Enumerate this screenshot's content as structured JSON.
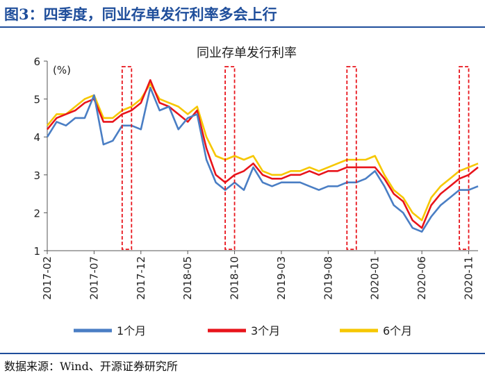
{
  "figure": {
    "label": "图3：四季度，同业存单发行利率多会上行",
    "source": "数据来源：Wind、开源证券研究所"
  },
  "colors": {
    "series_1m": "#4a7ec4",
    "series_3m": "#e8141b",
    "series_6m": "#f6c700",
    "highlight_box": "#e8141b",
    "header": "#1f4e9b"
  },
  "chart_data": {
    "type": "line",
    "title": "同业存单发行利率",
    "unit_label": "(%)",
    "xlabel": "",
    "ylabel": "",
    "ylim": [
      1,
      6
    ],
    "yticks": [
      1,
      2,
      3,
      4,
      5,
      6
    ],
    "xlim": [
      "2017-02",
      "2020-12"
    ],
    "x_tick_labels": [
      "2017-02",
      "2017-07",
      "2017-12",
      "2018-05",
      "2018-10",
      "2019-03",
      "2019-08",
      "2020-01",
      "2020-06",
      "2020-11"
    ],
    "legend": [
      "1个月",
      "3个月",
      "6个月"
    ],
    "legend_position": "bottom",
    "x": [
      "2017-02",
      "2017-03",
      "2017-04",
      "2017-05",
      "2017-06",
      "2017-07",
      "2017-08",
      "2017-09",
      "2017-10",
      "2017-11",
      "2017-12",
      "2018-01",
      "2018-02",
      "2018-03",
      "2018-04",
      "2018-05",
      "2018-06",
      "2018-07",
      "2018-08",
      "2018-09",
      "2018-10",
      "2018-11",
      "2018-12",
      "2019-01",
      "2019-02",
      "2019-03",
      "2019-04",
      "2019-05",
      "2019-06",
      "2019-07",
      "2019-08",
      "2019-09",
      "2019-10",
      "2019-11",
      "2019-12",
      "2020-01",
      "2020-02",
      "2020-03",
      "2020-04",
      "2020-05",
      "2020-06",
      "2020-07",
      "2020-08",
      "2020-09",
      "2020-10",
      "2020-11",
      "2020-12"
    ],
    "series": [
      {
        "name": "1个月",
        "color_key": "series_1m",
        "values": [
          4.0,
          4.4,
          4.3,
          4.5,
          4.5,
          5.1,
          3.8,
          3.9,
          4.3,
          4.3,
          4.2,
          5.3,
          4.7,
          4.8,
          4.2,
          4.5,
          4.6,
          3.4,
          2.8,
          2.6,
          2.8,
          2.6,
          3.2,
          2.8,
          2.7,
          2.8,
          2.8,
          2.8,
          2.7,
          2.6,
          2.7,
          2.7,
          2.8,
          2.8,
          2.9,
          3.1,
          2.7,
          2.2,
          2.0,
          1.6,
          1.5,
          1.9,
          2.2,
          2.4,
          2.6,
          2.6,
          2.7
        ]
      },
      {
        "name": "3个月",
        "color_key": "series_3m",
        "values": [
          4.2,
          4.5,
          4.6,
          4.7,
          4.9,
          5.0,
          4.4,
          4.4,
          4.6,
          4.7,
          4.9,
          5.5,
          4.9,
          4.8,
          4.6,
          4.4,
          4.7,
          3.7,
          3.0,
          2.8,
          3.0,
          3.1,
          3.3,
          3.0,
          2.9,
          2.9,
          3.0,
          3.0,
          3.1,
          3.0,
          3.1,
          3.1,
          3.2,
          3.2,
          3.2,
          3.2,
          2.9,
          2.5,
          2.3,
          1.8,
          1.6,
          2.2,
          2.5,
          2.7,
          2.9,
          3.0,
          3.2
        ]
      },
      {
        "name": "6个月",
        "color_key": "series_6m",
        "values": [
          4.3,
          4.6,
          4.6,
          4.8,
          5.0,
          5.1,
          4.5,
          4.5,
          4.7,
          4.8,
          5.0,
          5.4,
          5.0,
          4.9,
          4.8,
          4.6,
          4.8,
          4.0,
          3.5,
          3.4,
          3.5,
          3.4,
          3.5,
          3.1,
          3.0,
          3.0,
          3.1,
          3.1,
          3.2,
          3.1,
          3.2,
          3.3,
          3.4,
          3.4,
          3.4,
          3.5,
          3.0,
          2.6,
          2.4,
          2.0,
          1.8,
          2.4,
          2.7,
          2.9,
          3.1,
          3.2,
          3.3
        ]
      }
    ],
    "highlight_periods": [
      [
        "2017-10",
        "2017-11"
      ],
      [
        "2018-09",
        "2018-10"
      ],
      [
        "2019-10",
        "2019-11"
      ],
      [
        "2020-10",
        "2020-11"
      ]
    ]
  }
}
